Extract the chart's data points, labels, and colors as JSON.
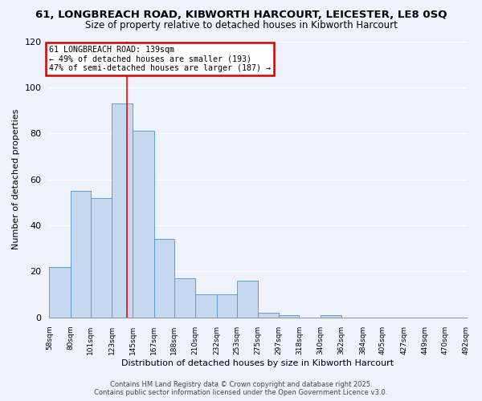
{
  "title": "61, LONGBREACH ROAD, KIBWORTH HARCOURT, LEICESTER, LE8 0SQ",
  "subtitle": "Size of property relative to detached houses in Kibworth Harcourt",
  "xlabel": "Distribution of detached houses by size in Kibworth Harcourt",
  "ylabel": "Number of detached properties",
  "bin_edges": [
    58,
    80,
    101,
    123,
    145,
    167,
    188,
    210,
    232,
    253,
    275,
    297,
    318,
    340,
    362,
    384,
    405,
    427,
    449,
    470,
    492
  ],
  "bin_labels": [
    "58sqm",
    "80sqm",
    "101sqm",
    "123sqm",
    "145sqm",
    "167sqm",
    "188sqm",
    "210sqm",
    "232sqm",
    "253sqm",
    "275sqm",
    "297sqm",
    "318sqm",
    "340sqm",
    "362sqm",
    "384sqm",
    "405sqm",
    "427sqm",
    "449sqm",
    "470sqm",
    "492sqm"
  ],
  "counts": [
    22,
    55,
    52,
    93,
    81,
    34,
    17,
    10,
    10,
    16,
    2,
    1,
    0,
    1,
    0,
    0,
    0,
    0,
    0,
    0
  ],
  "bar_color": "#c5d8f0",
  "bar_edge_color": "#5a9fd4",
  "redline_x": 139,
  "ylim": [
    0,
    120
  ],
  "yticks": [
    0,
    20,
    40,
    60,
    80,
    100,
    120
  ],
  "annotation_text": "61 LONGBREACH ROAD: 139sqm\n← 49% of detached houses are smaller (193)\n47% of semi-detached houses are larger (187) →",
  "annotation_box_color": "#ffffff",
  "annotation_box_edge": "#cc0000",
  "footer_line1": "Contains HM Land Registry data © Crown copyright and database right 2025.",
  "footer_line2": "Contains public sector information licensed under the Open Government Licence v3.0.",
  "background_color": "#eef2fb",
  "grid_color": "#ffffff"
}
